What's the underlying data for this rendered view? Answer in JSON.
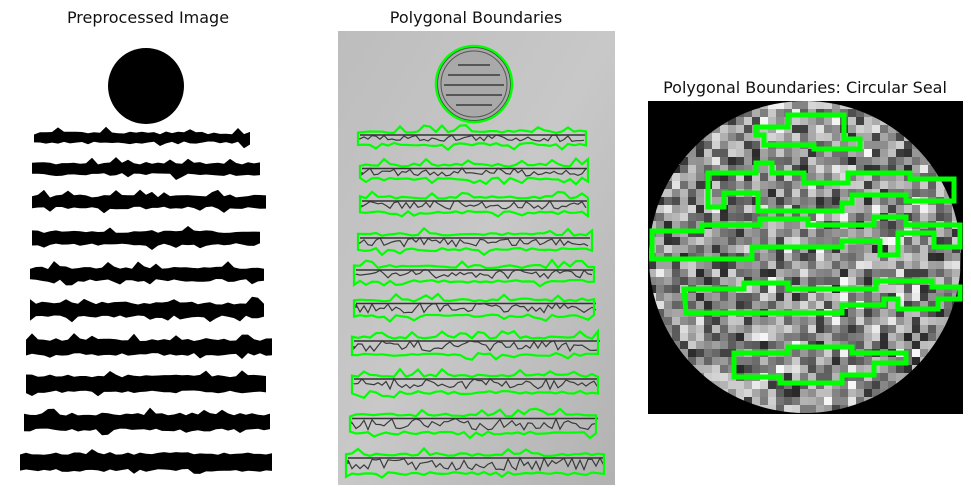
{
  "panels": [
    {
      "title": "Preprocessed Image"
    },
    {
      "title": "Polygonal Boundaries"
    },
    {
      "title": "Polygonal Boundaries: Circular Seal"
    }
  ],
  "colors": {
    "background": "#ffffff",
    "ink": "#000000",
    "boundary": "#00ff00",
    "paper": "#b8b8b8",
    "mask": "#000000"
  }
}
